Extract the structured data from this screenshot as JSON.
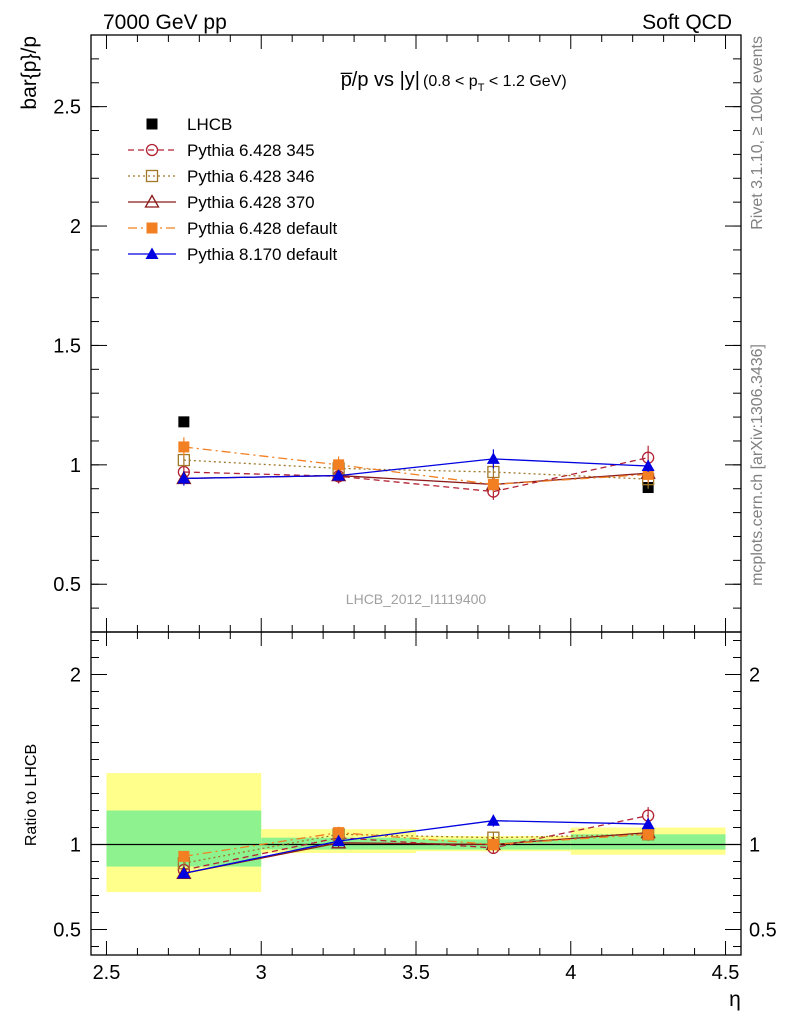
{
  "header": {
    "energy_label": "7000 GeV pp",
    "process_label": "Soft QCD"
  },
  "side_labels": {
    "rivet": "Rivet 3.1.10, ≥ 100k events",
    "mcplots": "mcplots.cern.ch [arXiv:1306.3436]"
  },
  "analysis_id": "LHCB_2012_I1119400",
  "colors": {
    "lhcb": "#000000",
    "p345": "#b22234",
    "p346": "#a0782a",
    "p370": "#8b1a1a",
    "p6def": "#f28022",
    "p8def": "#0000e0",
    "band_inner": "#8ef28e",
    "band_outer": "#ffff8c"
  },
  "chart_data": [
    {
      "type": "scatter",
      "title": "p̅/p vs |y|",
      "title_extra": "(0.8 < p",
      "title_sub": "T",
      "title_tail": " < 1.2 GeV)",
      "ylabel": "bar{p}/p",
      "xlabel": "η",
      "xlim": [
        2.45,
        4.55
      ],
      "ylim": [
        0.3,
        2.8
      ],
      "y_ticks": [
        "0.5",
        "1",
        "1.5",
        "2",
        "2.5"
      ],
      "y_tick_values": [
        0.5,
        1,
        1.5,
        2,
        2.5
      ],
      "legend_position": "top-left",
      "series": [
        {
          "name": "LHCB",
          "key": "lhcb",
          "marker": "square-filled",
          "line": "none",
          "x": [
            2.75,
            4.25
          ],
          "y": [
            1.18,
            0.905
          ],
          "err": [
            0.01,
            0.01
          ]
        },
        {
          "name": "Pythia 6.428 345",
          "key": "p345",
          "marker": "circle-open",
          "line": "dashed",
          "x": [
            2.75,
            3.25,
            3.75,
            4.25
          ],
          "y": [
            0.97,
            0.952,
            0.888,
            1.03
          ],
          "err": [
            0.025,
            0.03,
            0.035,
            0.05
          ]
        },
        {
          "name": "Pythia 6.428 346",
          "key": "p346",
          "marker": "square-open",
          "line": "dotted",
          "x": [
            2.75,
            3.25,
            3.75,
            4.25
          ],
          "y": [
            1.02,
            0.985,
            0.97,
            0.94
          ],
          "err": [
            0.025,
            0.03,
            0.035,
            0.04
          ]
        },
        {
          "name": "Pythia 6.428 370",
          "key": "p370",
          "marker": "triangle-open",
          "line": "solid",
          "x": [
            2.75,
            3.25,
            3.75,
            4.25
          ],
          "y": [
            0.943,
            0.955,
            0.918,
            0.965
          ],
          "err": [
            0.025,
            0.025,
            0.03,
            0.035
          ]
        },
        {
          "name": "Pythia 6.428 default",
          "key": "p6def",
          "marker": "square-filled",
          "line": "dashdot",
          "x": [
            2.75,
            3.25,
            3.75,
            4.25
          ],
          "y": [
            1.075,
            1.0,
            0.918,
            0.96
          ],
          "err": [
            0.04,
            0.035,
            0.03,
            0.035
          ]
        },
        {
          "name": "Pythia 8.170 default",
          "key": "p8def",
          "marker": "triangle-filled",
          "line": "solid",
          "x": [
            2.75,
            3.25,
            3.75,
            4.25
          ],
          "y": [
            0.943,
            0.955,
            1.025,
            0.995
          ],
          "err": [
            0.03,
            0.02,
            0.04,
            0.025
          ]
        }
      ]
    },
    {
      "type": "scatter",
      "title": "",
      "ylabel": "Ratio to LHCB",
      "xlabel": "η",
      "xlim": [
        2.45,
        4.55
      ],
      "ylim": [
        0.35,
        2.25
      ],
      "y_ticks": [
        "0.5",
        "1",
        "2"
      ],
      "y_tick_values": [
        0.5,
        1,
        2
      ],
      "x_ticks": [
        "2.5",
        "3",
        "3.5",
        "4",
        "4.5"
      ],
      "x_tick_values": [
        2.5,
        3,
        3.5,
        4,
        4.5
      ],
      "reference_line": 1,
      "bands": [
        {
          "x0": 2.5,
          "x1": 3.0,
          "inner": [
            0.87,
            1.2
          ],
          "outer": [
            0.72,
            1.42
          ]
        },
        {
          "x0": 3.0,
          "x1": 3.5,
          "inner": [
            0.97,
            1.04
          ],
          "outer": [
            0.95,
            1.09
          ]
        },
        {
          "x0": 3.5,
          "x1": 4.0,
          "inner": [
            0.97,
            1.03
          ],
          "outer": [
            0.96,
            1.05
          ]
        },
        {
          "x0": 4.0,
          "x1": 4.5,
          "inner": [
            0.97,
            1.06
          ],
          "outer": [
            0.94,
            1.1
          ]
        }
      ],
      "series": [
        {
          "name": "Pythia 6.428 345",
          "key": "p345",
          "marker": "circle-open",
          "line": "dashed",
          "x": [
            2.75,
            3.25,
            3.75,
            4.25
          ],
          "y": [
            0.85,
            1.04,
            0.98,
            1.17
          ],
          "err": [
            0.02,
            0.03,
            0.035,
            0.05
          ]
        },
        {
          "name": "Pythia 6.428 346",
          "key": "p346",
          "marker": "square-open",
          "line": "dotted",
          "x": [
            2.75,
            3.25,
            3.75,
            4.25
          ],
          "y": [
            0.89,
            1.06,
            1.04,
            1.06
          ],
          "err": [
            0.02,
            0.03,
            0.035,
            0.04
          ]
        },
        {
          "name": "Pythia 6.428 370",
          "key": "p370",
          "marker": "triangle-open",
          "line": "solid",
          "x": [
            2.75,
            3.25,
            3.75,
            4.25
          ],
          "y": [
            0.83,
            1.01,
            1.0,
            1.07
          ],
          "err": [
            0.02,
            0.025,
            0.03,
            0.035
          ]
        },
        {
          "name": "Pythia 6.428 default",
          "key": "p6def",
          "marker": "square-filled",
          "line": "dashdot",
          "x": [
            2.75,
            3.25,
            3.75,
            4.25
          ],
          "y": [
            0.93,
            1.07,
            1.0,
            1.06
          ],
          "err": [
            0.03,
            0.035,
            0.03,
            0.035
          ]
        },
        {
          "name": "Pythia 8.170 default",
          "key": "p8def",
          "marker": "triangle-filled",
          "line": "solid",
          "x": [
            2.75,
            3.25,
            3.75,
            4.25
          ],
          "y": [
            0.83,
            1.02,
            1.14,
            1.12
          ],
          "err": [
            0.02,
            0.02,
            0.035,
            0.025
          ]
        }
      ]
    }
  ]
}
